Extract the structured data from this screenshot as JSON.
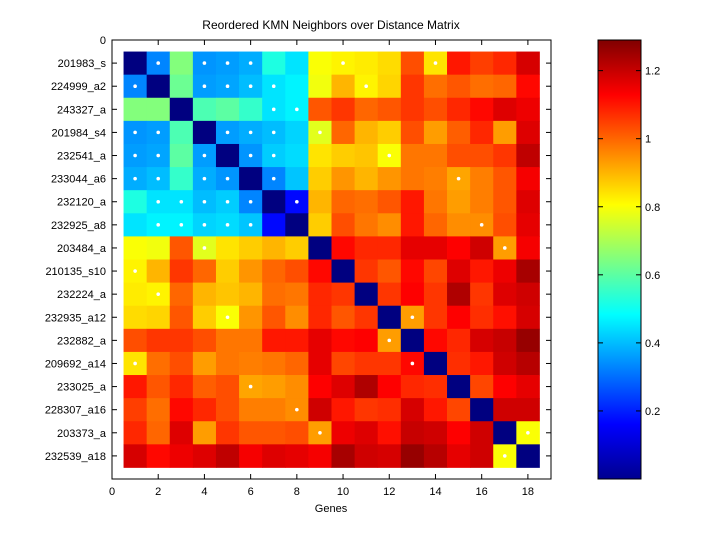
{
  "chart_data": {
    "type": "heatmap",
    "title": "Reordered KMN Neighbors over Distance Matrix",
    "xlabel": "Genes",
    "ylabel": "",
    "xlim": [
      0,
      19
    ],
    "ylim": [
      0,
      19
    ],
    "x_ticks": [
      0,
      2,
      4,
      6,
      8,
      10,
      12,
      14,
      16,
      18
    ],
    "y_top_tick": "0",
    "row_labels": [
      "201983_s",
      "224999_a2",
      "243327_a",
      "201984_s4",
      "232541_a",
      "233044_a6",
      "232120_a",
      "232925_a8",
      "203484_a",
      "210135_s10",
      "232224_a",
      "232935_a12",
      "232882_a",
      "209692_a14",
      "233025_a",
      "228307_a16",
      "203373_a",
      "232539_a18"
    ],
    "colorbar": {
      "min": 0.0,
      "max": 1.29,
      "ticks": [
        0.2,
        0.4,
        0.6,
        0.8,
        1,
        1.2
      ],
      "tick_labels": [
        "0.2",
        "0.4",
        "0.6",
        "0.8",
        "1",
        "1.2"
      ],
      "colormap": "jet"
    },
    "matrix": [
      [
        0.0,
        0.33,
        0.65,
        0.35,
        0.36,
        0.38,
        0.52,
        0.45,
        0.8,
        0.82,
        0.83,
        0.85,
        1.03,
        0.84,
        1.1,
        1.05,
        1.08,
        1.18
      ],
      [
        0.33,
        0.0,
        0.62,
        0.36,
        0.37,
        0.4,
        0.45,
        0.47,
        0.79,
        0.9,
        0.82,
        0.86,
        1.06,
        0.99,
        1.02,
        0.99,
        1.0,
        1.12
      ],
      [
        0.65,
        0.65,
        0.0,
        0.58,
        0.6,
        0.55,
        0.45,
        0.47,
        1.02,
        1.06,
        1.0,
        1.02,
        1.06,
        1.03,
        1.08,
        1.12,
        1.17,
        1.15
      ],
      [
        0.35,
        0.36,
        0.58,
        0.0,
        0.36,
        0.38,
        0.4,
        0.43,
        0.77,
        1.0,
        0.9,
        0.87,
        1.03,
        0.93,
        1.01,
        1.08,
        0.93,
        1.17
      ],
      [
        0.36,
        0.37,
        0.6,
        0.36,
        0.0,
        0.35,
        0.42,
        0.44,
        0.84,
        0.87,
        0.88,
        0.8,
        0.98,
        0.98,
        1.03,
        1.03,
        1.06,
        1.21
      ],
      [
        0.38,
        0.4,
        0.55,
        0.38,
        0.35,
        0.0,
        0.33,
        0.41,
        0.87,
        0.94,
        0.9,
        0.94,
        0.98,
        0.97,
        0.92,
        0.97,
        1.02,
        1.14
      ],
      [
        0.52,
        0.45,
        0.45,
        0.4,
        0.42,
        0.33,
        0.0,
        0.17,
        0.9,
        1.0,
        0.99,
        1.02,
        1.1,
        0.98,
        0.93,
        0.97,
        1.02,
        1.17
      ],
      [
        0.45,
        0.47,
        0.47,
        0.43,
        0.44,
        0.41,
        0.17,
        0.0,
        0.87,
        1.03,
        0.98,
        0.95,
        1.1,
        1.0,
        0.95,
        0.95,
        1.03,
        1.16
      ],
      [
        0.8,
        0.79,
        1.02,
        0.77,
        0.84,
        0.87,
        0.9,
        0.87,
        0.0,
        1.12,
        1.08,
        1.08,
        1.16,
        1.16,
        1.13,
        1.19,
        0.93,
        1.14
      ],
      [
        0.82,
        0.9,
        1.06,
        1.0,
        0.87,
        0.94,
        1.0,
        1.03,
        1.12,
        0.0,
        1.06,
        1.02,
        1.12,
        1.04,
        1.17,
        1.1,
        1.15,
        1.24
      ],
      [
        0.83,
        0.82,
        1.0,
        0.9,
        0.88,
        0.9,
        0.99,
        0.98,
        1.08,
        1.06,
        0.0,
        1.06,
        1.13,
        1.06,
        1.23,
        1.06,
        1.17,
        1.19
      ],
      [
        0.85,
        0.86,
        1.02,
        0.87,
        0.8,
        0.94,
        1.02,
        0.95,
        1.08,
        1.02,
        1.06,
        0.0,
        0.93,
        1.06,
        1.13,
        1.07,
        1.11,
        1.18
      ],
      [
        1.03,
        1.06,
        1.06,
        1.03,
        0.98,
        0.98,
        1.1,
        1.1,
        1.16,
        1.12,
        1.13,
        0.93,
        0.0,
        1.12,
        1.08,
        1.18,
        1.2,
        1.26
      ],
      [
        0.84,
        0.99,
        1.03,
        0.93,
        0.98,
        0.97,
        0.98,
        1.0,
        1.16,
        1.04,
        1.06,
        1.06,
        1.12,
        0.0,
        1.07,
        1.1,
        1.19,
        1.22
      ],
      [
        1.1,
        1.02,
        1.08,
        1.01,
        1.03,
        0.92,
        0.93,
        0.95,
        1.13,
        1.17,
        1.23,
        1.13,
        1.08,
        1.07,
        0.0,
        1.04,
        1.13,
        1.16
      ],
      [
        1.05,
        0.99,
        1.12,
        1.08,
        1.03,
        0.97,
        0.97,
        0.95,
        1.19,
        1.1,
        1.06,
        1.07,
        1.18,
        1.1,
        1.04,
        0.0,
        1.19,
        1.19
      ],
      [
        1.08,
        1.0,
        1.17,
        0.93,
        1.06,
        1.02,
        1.02,
        1.03,
        0.93,
        1.15,
        1.17,
        1.11,
        1.2,
        1.19,
        1.13,
        1.19,
        0.0,
        0.8
      ],
      [
        1.18,
        1.12,
        1.15,
        1.17,
        1.21,
        1.14,
        1.17,
        1.16,
        1.14,
        1.24,
        1.19,
        1.18,
        1.26,
        1.22,
        1.16,
        1.19,
        0.8,
        0.0
      ]
    ],
    "neighbor_markers": [
      [
        1,
        2
      ],
      [
        1,
        4
      ],
      [
        1,
        5
      ],
      [
        1,
        6
      ],
      [
        1,
        10
      ],
      [
        1,
        14
      ],
      [
        2,
        1
      ],
      [
        2,
        4
      ],
      [
        2,
        5
      ],
      [
        2,
        6
      ],
      [
        2,
        7
      ],
      [
        2,
        11
      ],
      [
        3,
        7
      ],
      [
        3,
        8
      ],
      [
        4,
        1
      ],
      [
        4,
        2
      ],
      [
        4,
        5
      ],
      [
        4,
        6
      ],
      [
        4,
        7
      ],
      [
        4,
        9
      ],
      [
        5,
        1
      ],
      [
        5,
        2
      ],
      [
        5,
        4
      ],
      [
        5,
        6
      ],
      [
        5,
        7
      ],
      [
        5,
        12
      ],
      [
        6,
        1
      ],
      [
        6,
        2
      ],
      [
        6,
        4
      ],
      [
        6,
        5
      ],
      [
        6,
        7
      ],
      [
        6,
        15
      ],
      [
        7,
        2
      ],
      [
        7,
        3
      ],
      [
        7,
        4
      ],
      [
        7,
        5
      ],
      [
        7,
        6
      ],
      [
        7,
        8
      ],
      [
        8,
        2
      ],
      [
        8,
        3
      ],
      [
        8,
        4
      ],
      [
        8,
        5
      ],
      [
        8,
        6
      ],
      [
        8,
        16
      ],
      [
        9,
        4
      ],
      [
        9,
        17
      ],
      [
        10,
        1
      ],
      [
        11,
        2
      ],
      [
        12,
        5
      ],
      [
        12,
        13
      ],
      [
        13,
        12
      ],
      [
        14,
        1
      ],
      [
        14,
        13
      ],
      [
        15,
        6
      ],
      [
        16,
        8
      ],
      [
        17,
        9
      ],
      [
        17,
        18
      ],
      [
        18,
        17
      ]
    ]
  }
}
